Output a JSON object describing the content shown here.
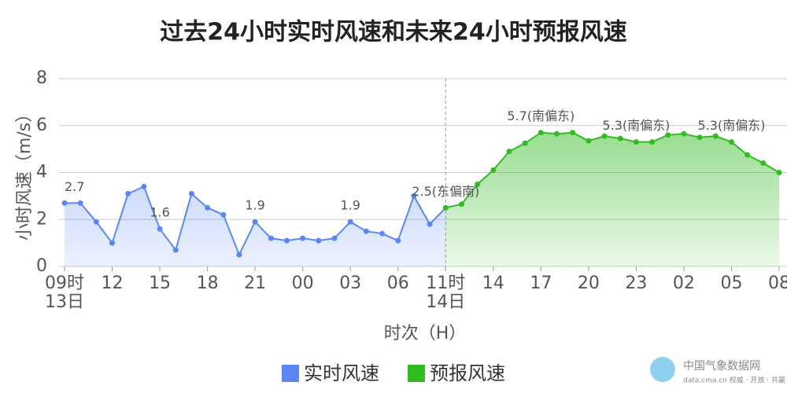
{
  "chart_data": {
    "type": "line",
    "title": "过去24小时实时风速和未来24小时预报风速",
    "y_label": "小时风速（m/s）",
    "x_label": "时次（H）",
    "ylim": [
      0,
      8
    ],
    "yticks": [
      0,
      2,
      4,
      6,
      8
    ],
    "grid": true,
    "legend": "bottom",
    "categories": [
      "09时\n13日",
      null,
      null,
      "12",
      null,
      null,
      "15",
      null,
      null,
      "18",
      null,
      null,
      "21",
      null,
      null,
      "00",
      null,
      null,
      "03",
      null,
      null,
      "06",
      null,
      null,
      "11时\n14日",
      null,
      null,
      "14",
      null,
      null,
      "17",
      null,
      null,
      "20",
      null,
      null,
      "23",
      null,
      null,
      "02",
      null,
      null,
      "05",
      null,
      null,
      "08"
    ],
    "series": [
      {
        "name": "实时风速",
        "color": "#5b87f5",
        "values": [
          2.7,
          2.7,
          1.9,
          1.0,
          3.1,
          3.4,
          1.6,
          0.7,
          3.1,
          2.5,
          2.2,
          0.5,
          1.9,
          1.2,
          1.1,
          1.2,
          1.1,
          1.2,
          1.9,
          1.5,
          1.4,
          1.1,
          3.0,
          1.8,
          2.5,
          null,
          null,
          null,
          null,
          null,
          null,
          null,
          null,
          null,
          null,
          null,
          null,
          null,
          null,
          null,
          null,
          null,
          null,
          null,
          null,
          null
        ],
        "value_labels": [
          "2.7",
          null,
          null,
          null,
          null,
          null,
          "1.6",
          null,
          null,
          null,
          null,
          null,
          "1.9",
          null,
          null,
          null,
          null,
          null,
          "1.9",
          null,
          null,
          null,
          null,
          null,
          null,
          null,
          null,
          null,
          null,
          null,
          null,
          null,
          null,
          null,
          null,
          null,
          null,
          null,
          null,
          null,
          null,
          null,
          null,
          null,
          null,
          null
        ]
      },
      {
        "name": "预报风速",
        "color": "#33bb22",
        "values": [
          null,
          null,
          null,
          null,
          null,
          null,
          null,
          null,
          null,
          null,
          null,
          null,
          null,
          null,
          null,
          null,
          null,
          null,
          null,
          null,
          null,
          null,
          null,
          null,
          2.5,
          2.65,
          3.5,
          4.1,
          4.9,
          5.25,
          5.7,
          5.65,
          5.7,
          5.35,
          5.55,
          5.45,
          5.3,
          5.3,
          5.6,
          5.65,
          5.5,
          5.55,
          5.3,
          4.75,
          4.4,
          4.0
        ],
        "value_labels": [
          null,
          null,
          null,
          null,
          null,
          null,
          null,
          null,
          null,
          null,
          null,
          null,
          null,
          null,
          null,
          null,
          null,
          null,
          null,
          null,
          null,
          null,
          null,
          null,
          "2.5(东偏南)",
          null,
          null,
          null,
          null,
          null,
          "5.7(南偏东)",
          null,
          null,
          null,
          null,
          null,
          "5.3(南偏东)",
          null,
          null,
          null,
          null,
          null,
          "5.3(南偏东)",
          null,
          null,
          null
        ]
      }
    ],
    "source": "中国气象数据网",
    "source_url": "data.cma.cn 权威 · 开放 · 共赢"
  }
}
